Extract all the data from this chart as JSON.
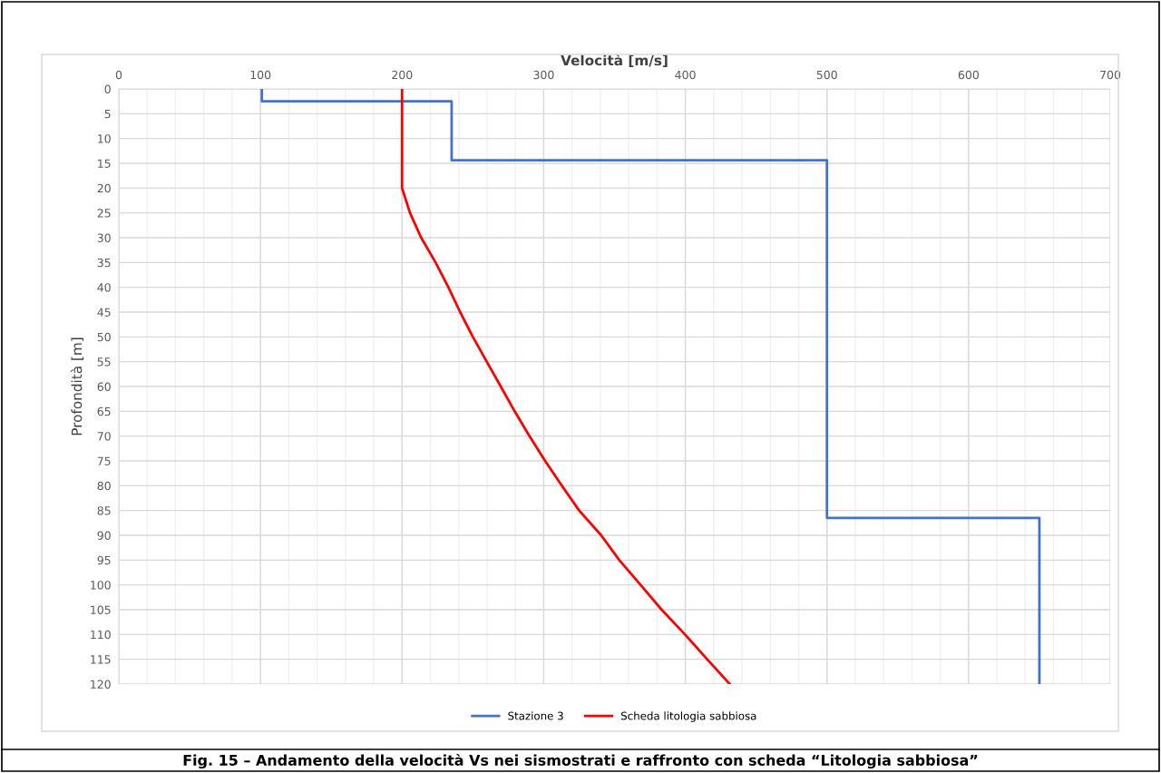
{
  "chart_data": {
    "type": "line",
    "xlabel": "Velocità [m/s]",
    "ylabel": "Profondità [m]",
    "xlim": [
      0,
      700
    ],
    "xticks": [
      0,
      100,
      200,
      300,
      400,
      500,
      600,
      700
    ],
    "ylim": [
      120,
      0
    ],
    "yticks": [
      0,
      5,
      10,
      15,
      20,
      25,
      30,
      35,
      40,
      45,
      50,
      55,
      60,
      65,
      70,
      75,
      80,
      85,
      90,
      95,
      100,
      105,
      110,
      115,
      120
    ],
    "grid": true,
    "legend": "bottom",
    "marker": "none",
    "line_style": "solid",
    "series": [
      {
        "name": "Stazione 3",
        "color": "#4472c4",
        "x": [
          101,
          101,
          235,
          235,
          500,
          500,
          650,
          650
        ],
        "values": [
          0,
          2.5,
          2.5,
          14.4,
          14.4,
          86.5,
          86.5,
          120
        ]
      },
      {
        "name": "Scheda litologia sabbiosa",
        "color": "#ff0000",
        "x": [
          200,
          200,
          205.6,
          213.5,
          223.7,
          232.7,
          241,
          250,
          259.8,
          269.7,
          279.5,
          290,
          301,
          312.8,
          325,
          340.6,
          353.4,
          368.4,
          383.3,
          399.8,
          415.4,
          431.4
        ],
        "values": [
          0,
          20,
          25,
          30,
          35,
          40,
          45,
          50,
          55,
          60,
          65,
          70,
          75,
          80,
          85,
          90,
          95,
          100,
          105,
          110,
          115,
          120
        ]
      }
    ],
    "annotations": [
      "Fig. 15 – Andamento della velocità Vs nei sismostrati e raffronto con scheda “Litologia sabbiosa”"
    ]
  }
}
